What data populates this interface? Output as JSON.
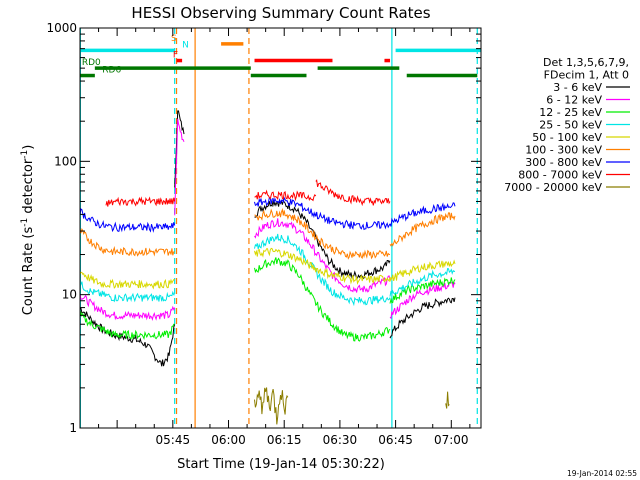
{
  "chart_data": {
    "type": "line",
    "title": "HESSI Observing Summary Count Rates",
    "xlabel": "Start Time (19-Jan-14 05:30:22)",
    "ylabel_main": "Count Rate (s",
    "ylabel_sup1": "-1",
    "ylabel_mid": " detector",
    "ylabel_sup2": "-1",
    "ylabel_end": ")",
    "yscale": "log",
    "ylim": [
      1,
      1000
    ],
    "xlim": [
      -10,
      98
    ],
    "x_units": "minutes after 05:30",
    "x_ticks": [
      {
        "x": 15,
        "label": "05:45"
      },
      {
        "x": 30,
        "label": "06:00"
      },
      {
        "x": 45,
        "label": "06:15"
      },
      {
        "x": 60,
        "label": "06:30"
      },
      {
        "x": 75,
        "label": "06:45"
      },
      {
        "x": 90,
        "label": "07:00"
      }
    ],
    "y_ticks": [
      {
        "y": 1,
        "label": "1"
      },
      {
        "y": 10,
        "label": "10"
      },
      {
        "y": 100,
        "label": "100"
      },
      {
        "y": 1000,
        "label": "1000"
      }
    ],
    "legend": {
      "position": "right",
      "header": [
        "Det 1,3,5,6,7,9,",
        "FDecim 1, Att 0"
      ],
      "entries": [
        {
          "label": "3 - 6 keV",
          "color": "#000000"
        },
        {
          "label": "6 - 12 keV",
          "color": "#ff00ff"
        },
        {
          "label": "12 - 25 keV",
          "color": "#00ee00"
        },
        {
          "label": "25 - 50 keV",
          "color": "#00e5e5"
        },
        {
          "label": "50 - 100 keV",
          "color": "#d8d800"
        },
        {
          "label": "100 - 300 keV",
          "color": "#ff7f00"
        },
        {
          "label": "300 - 800 keV",
          "color": "#0000ff"
        },
        {
          "label": "800 - 7000 keV",
          "color": "#ff0000"
        },
        {
          "label": "7000 - 20000 keV",
          "color": "#8b7d00"
        }
      ]
    },
    "series": [
      {
        "name": "3 - 6 keV",
        "color": "#000000",
        "segments": [
          {
            "x": [
              -10,
              -7,
              -4,
              -1,
              2,
              5,
              8,
              10,
              12,
              14,
              15.5
            ],
            "y": [
              8,
              6.5,
              5.5,
              5,
              4.8,
              4.6,
              4.2,
              3.5,
              3,
              3.5,
              6
            ]
          },
          {
            "x": [
              15.5,
              16.3,
              17,
              18
            ],
            "y": [
              60,
              250,
              200,
              160
            ]
          },
          {
            "x": [
              37,
              39,
              42,
              45,
              48,
              51,
              54,
              57,
              60,
              63,
              66,
              69,
              72,
              73.5
            ],
            "y": [
              40,
              45,
              50,
              48,
              44,
              35,
              25,
              18,
              15,
              14,
              14,
              15,
              16,
              18
            ]
          },
          {
            "x": [
              73.5,
              76,
              79,
              82,
              85,
              88,
              91
            ],
            "y": [
              5,
              6,
              7,
              8,
              8.5,
              9,
              9.5
            ]
          }
        ]
      },
      {
        "name": "6 - 12 keV",
        "color": "#ff00ff",
        "segments": [
          {
            "x": [
              -10,
              -7,
              -4,
              -1,
              2,
              5,
              8,
              11,
              14,
              15.5
            ],
            "y": [
              10,
              8.5,
              7.5,
              7,
              7,
              7,
              7,
              7,
              7,
              8
            ]
          },
          {
            "x": [
              15.5,
              16.3,
              17,
              18
            ],
            "y": [
              40,
              200,
              170,
              140
            ]
          },
          {
            "x": [
              37,
              40,
              43,
              46,
              49,
              52,
              55,
              58,
              61,
              64,
              67,
              70,
              73.5
            ],
            "y": [
              28,
              33,
              35,
              34,
              30,
              24,
              18,
              14,
              12,
              11,
              11,
              12,
              13
            ]
          },
          {
            "x": [
              73.5,
              76,
              79,
              82,
              85,
              88,
              91
            ],
            "y": [
              7,
              8,
              9.5,
              10.5,
              11,
              11.5,
              12
            ]
          }
        ]
      },
      {
        "name": "12 - 25 keV",
        "color": "#00ee00",
        "segments": [
          {
            "x": [
              -10,
              -7,
              -4,
              -1,
              2,
              5,
              8,
              11,
              14,
              15.5
            ],
            "y": [
              7,
              6,
              5.5,
              5,
              5,
              5,
              5,
              5,
              5,
              6
            ]
          },
          {
            "x": [
              37,
              40,
              43,
              46,
              49,
              52,
              55,
              58,
              61,
              64,
              67,
              70,
              73.5
            ],
            "y": [
              15,
              17,
              18,
              17,
              14,
              10,
              7.5,
              6,
              5,
              4.8,
              4.8,
              5,
              5.5
            ]
          },
          {
            "x": [
              73.5,
              76,
              79,
              82,
              85,
              88,
              91
            ],
            "y": [
              9,
              10,
              11,
              11.5,
              12,
              12.5,
              13
            ]
          }
        ]
      },
      {
        "name": "25 - 50 keV",
        "color": "#00e5e5",
        "segments": [
          {
            "x": [
              -10,
              -7,
              -4,
              -1,
              2,
              5,
              8,
              11,
              14,
              15.5
            ],
            "y": [
              12,
              10.5,
              10,
              9.5,
              9.5,
              9.5,
              9.5,
              9.5,
              9.5,
              10
            ]
          },
          {
            "x": [
              37,
              40,
              43,
              46,
              49,
              52,
              55,
              58,
              61,
              64,
              67,
              70,
              73.5
            ],
            "y": [
              22,
              25,
              27,
              26,
              22,
              17,
              13,
              10.5,
              9.5,
              9,
              9,
              9.2,
              9.5
            ]
          },
          {
            "x": [
              73.5,
              76,
              79,
              82,
              85,
              88,
              91
            ],
            "y": [
              10,
              11,
              12,
              13,
              14,
              14.5,
              15
            ]
          }
        ]
      },
      {
        "name": "50 - 100 keV",
        "color": "#d8d800",
        "segments": [
          {
            "x": [
              -10,
              -7,
              -4,
              -1,
              2,
              5,
              8,
              11,
              14,
              15.5
            ],
            "y": [
              15,
              13,
              12,
              12,
              12,
              12,
              12,
              12,
              12,
              13
            ]
          },
          {
            "x": [
              37,
              40,
              43,
              46,
              49,
              52,
              55,
              58,
              61,
              64,
              67,
              70,
              73.5
            ],
            "y": [
              20,
              21,
              21,
              20,
              18.5,
              16.5,
              15,
              14,
              13.5,
              13,
              13,
              13,
              13.5
            ]
          },
          {
            "x": [
              73.5,
              76,
              79,
              82,
              85,
              88,
              91
            ],
            "y": [
              13,
              14,
              15,
              16,
              16.5,
              17,
              17
            ]
          }
        ]
      },
      {
        "name": "100 - 300 keV",
        "color": "#ff7f00",
        "segments": [
          {
            "x": [
              -10,
              -7,
              -4,
              -1,
              2,
              5,
              8,
              11,
              14,
              15.5
            ],
            "y": [
              30,
              25,
              22,
              21,
              21,
              21,
              21,
              21,
              21,
              21
            ]
          },
          {
            "x": [
              37,
              40,
              43,
              46,
              49,
              52,
              55,
              58,
              61,
              64,
              67,
              70,
              73.5
            ],
            "y": [
              38,
              40,
              41,
              40,
              36,
              30,
              25,
              22,
              20,
              20,
              20,
              20,
              20
            ]
          },
          {
            "x": [
              73.5,
              76,
              79,
              82,
              85,
              88,
              91
            ],
            "y": [
              23,
              26,
              30,
              33,
              36,
              38,
              39
            ]
          }
        ]
      },
      {
        "name": "300 - 800 keV",
        "color": "#0000ff",
        "segments": [
          {
            "x": [
              -10,
              -7,
              -4,
              -1,
              2,
              5,
              8,
              11,
              14,
              15.5
            ],
            "y": [
              42,
              36,
              33,
              32,
              32,
              32,
              32,
              32,
              32,
              33
            ]
          },
          {
            "x": [
              37,
              40,
              43,
              46,
              49,
              52,
              55,
              58,
              61,
              64,
              67,
              70,
              73.5
            ],
            "y": [
              48,
              50,
              51,
              50,
              47,
              42,
              38,
              35,
              34,
              33,
              33,
              33,
              34
            ]
          },
          {
            "x": [
              73.5,
              76,
              79,
              82,
              85,
              88,
              91
            ],
            "y": [
              34,
              37,
              40,
              42,
              44,
              45,
              46
            ]
          }
        ]
      },
      {
        "name": "800 - 7000 keV",
        "color": "#ff0000",
        "segments": [
          {
            "x": [
              -3,
              0,
              3,
              6,
              9,
              12,
              15.5
            ],
            "y": [
              48,
              50,
              50,
              50,
              50,
              50,
              50
            ]
          },
          {
            "x": [
              37,
              41,
              45,
              49,
              52,
              53.5
            ],
            "y": [
              55,
              56,
              56,
              55,
              54,
              55
            ]
          },
          {
            "x": [
              53.5,
              56,
              59,
              62,
              65,
              68,
              71,
              73.5
            ],
            "y": [
              70,
              62,
              56,
              53,
              51,
              50,
              50,
              50
            ]
          }
        ]
      },
      {
        "name": "7000 - 20000 keV",
        "color": "#8b7d00",
        "segments": [
          {
            "x": [
              37,
              38,
              39,
              40,
              41,
              42,
              43,
              44,
              45,
              46
            ],
            "y": [
              1.5,
              2,
              1.3,
              2,
              1.5,
              1.8,
              1.2,
              2,
              1.4,
              1.7
            ]
          },
          {
            "x": [
              88.5,
              89,
              89.5
            ],
            "y": [
              1.3,
              2,
              1.5
            ]
          }
        ]
      }
    ],
    "state_bars": [
      {
        "label": "S",
        "label_x": 14.5,
        "color": "#ff7f00",
        "y": 760,
        "segments": [
          [
            28,
            34
          ]
        ]
      },
      {
        "label": "N",
        "label_x": 17.5,
        "color": "#00e5e5",
        "y": 680,
        "segments": [
          [
            -10,
            15.5
          ],
          [
            75,
            98
          ]
        ]
      },
      {
        "label": "F",
        "label_x": 15,
        "color": "#ff0000",
        "y": 570,
        "segments": [
          [
            16,
            17.5
          ],
          [
            37,
            58
          ],
          [
            72,
            73.5
          ]
        ]
      },
      {
        "label": "RD0",
        "label_x": -9.5,
        "color": "#007700",
        "y": 500,
        "segments": [
          [
            -6,
            36
          ],
          [
            54,
            76
          ]
        ]
      },
      {
        "label": "RD6",
        "label_x": -4,
        "color": "#007700",
        "y": 440,
        "segments": [
          [
            -10,
            -6
          ],
          [
            36,
            51
          ],
          [
            78,
            97
          ]
        ]
      }
    ],
    "vlines": [
      {
        "x": -9.9,
        "color": "#00e5e5",
        "dash": false
      },
      {
        "x": 15.5,
        "color": "#00e5e5",
        "dash": true
      },
      {
        "x": 16,
        "color": "#ff7f00",
        "dash": true
      },
      {
        "x": 21,
        "color": "#ff7f00",
        "dash": false
      },
      {
        "x": 35.5,
        "color": "#ff7f00",
        "dash": true
      },
      {
        "x": 74,
        "color": "#00e5e5",
        "dash": false
      },
      {
        "x": 97,
        "color": "#00e5e5",
        "dash": true
      }
    ]
  },
  "footer": {
    "timestamp": "19-Jan-2014 02:55"
  }
}
